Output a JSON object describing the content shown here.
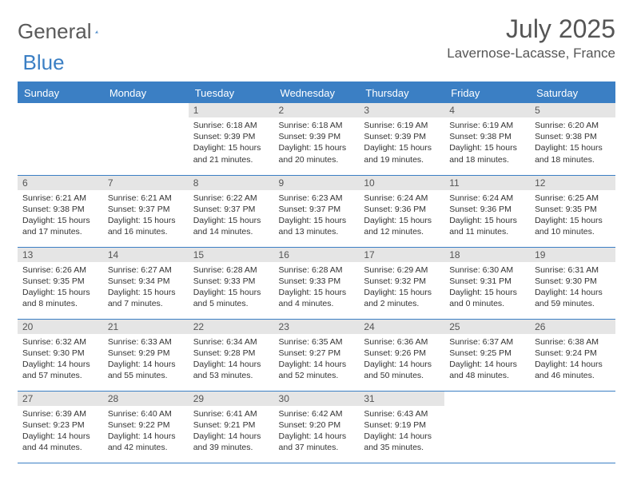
{
  "logo": {
    "part1": "General",
    "part2": "Blue"
  },
  "title": "July 2025",
  "location": "Lavernose-Lacasse, France",
  "colors": {
    "accent": "#3b7fc4",
    "header_bg": "#3b7fc4",
    "header_text": "#ffffff",
    "daynum_bg": "#e5e5e5",
    "text": "#333333",
    "muted": "#555555",
    "page_bg": "#ffffff"
  },
  "weekdays": [
    "Sunday",
    "Monday",
    "Tuesday",
    "Wednesday",
    "Thursday",
    "Friday",
    "Saturday"
  ],
  "first_weekday_index": 2,
  "days": [
    {
      "n": 1,
      "sunrise": "6:18 AM",
      "sunset": "9:39 PM",
      "daylight": "15 hours and 21 minutes."
    },
    {
      "n": 2,
      "sunrise": "6:18 AM",
      "sunset": "9:39 PM",
      "daylight": "15 hours and 20 minutes."
    },
    {
      "n": 3,
      "sunrise": "6:19 AM",
      "sunset": "9:39 PM",
      "daylight": "15 hours and 19 minutes."
    },
    {
      "n": 4,
      "sunrise": "6:19 AM",
      "sunset": "9:38 PM",
      "daylight": "15 hours and 18 minutes."
    },
    {
      "n": 5,
      "sunrise": "6:20 AM",
      "sunset": "9:38 PM",
      "daylight": "15 hours and 18 minutes."
    },
    {
      "n": 6,
      "sunrise": "6:21 AM",
      "sunset": "9:38 PM",
      "daylight": "15 hours and 17 minutes."
    },
    {
      "n": 7,
      "sunrise": "6:21 AM",
      "sunset": "9:37 PM",
      "daylight": "15 hours and 16 minutes."
    },
    {
      "n": 8,
      "sunrise": "6:22 AM",
      "sunset": "9:37 PM",
      "daylight": "15 hours and 14 minutes."
    },
    {
      "n": 9,
      "sunrise": "6:23 AM",
      "sunset": "9:37 PM",
      "daylight": "15 hours and 13 minutes."
    },
    {
      "n": 10,
      "sunrise": "6:24 AM",
      "sunset": "9:36 PM",
      "daylight": "15 hours and 12 minutes."
    },
    {
      "n": 11,
      "sunrise": "6:24 AM",
      "sunset": "9:36 PM",
      "daylight": "15 hours and 11 minutes."
    },
    {
      "n": 12,
      "sunrise": "6:25 AM",
      "sunset": "9:35 PM",
      "daylight": "15 hours and 10 minutes."
    },
    {
      "n": 13,
      "sunrise": "6:26 AM",
      "sunset": "9:35 PM",
      "daylight": "15 hours and 8 minutes."
    },
    {
      "n": 14,
      "sunrise": "6:27 AM",
      "sunset": "9:34 PM",
      "daylight": "15 hours and 7 minutes."
    },
    {
      "n": 15,
      "sunrise": "6:28 AM",
      "sunset": "9:33 PM",
      "daylight": "15 hours and 5 minutes."
    },
    {
      "n": 16,
      "sunrise": "6:28 AM",
      "sunset": "9:33 PM",
      "daylight": "15 hours and 4 minutes."
    },
    {
      "n": 17,
      "sunrise": "6:29 AM",
      "sunset": "9:32 PM",
      "daylight": "15 hours and 2 minutes."
    },
    {
      "n": 18,
      "sunrise": "6:30 AM",
      "sunset": "9:31 PM",
      "daylight": "15 hours and 0 minutes."
    },
    {
      "n": 19,
      "sunrise": "6:31 AM",
      "sunset": "9:30 PM",
      "daylight": "14 hours and 59 minutes."
    },
    {
      "n": 20,
      "sunrise": "6:32 AM",
      "sunset": "9:30 PM",
      "daylight": "14 hours and 57 minutes."
    },
    {
      "n": 21,
      "sunrise": "6:33 AM",
      "sunset": "9:29 PM",
      "daylight": "14 hours and 55 minutes."
    },
    {
      "n": 22,
      "sunrise": "6:34 AM",
      "sunset": "9:28 PM",
      "daylight": "14 hours and 53 minutes."
    },
    {
      "n": 23,
      "sunrise": "6:35 AM",
      "sunset": "9:27 PM",
      "daylight": "14 hours and 52 minutes."
    },
    {
      "n": 24,
      "sunrise": "6:36 AM",
      "sunset": "9:26 PM",
      "daylight": "14 hours and 50 minutes."
    },
    {
      "n": 25,
      "sunrise": "6:37 AM",
      "sunset": "9:25 PM",
      "daylight": "14 hours and 48 minutes."
    },
    {
      "n": 26,
      "sunrise": "6:38 AM",
      "sunset": "9:24 PM",
      "daylight": "14 hours and 46 minutes."
    },
    {
      "n": 27,
      "sunrise": "6:39 AM",
      "sunset": "9:23 PM",
      "daylight": "14 hours and 44 minutes."
    },
    {
      "n": 28,
      "sunrise": "6:40 AM",
      "sunset": "9:22 PM",
      "daylight": "14 hours and 42 minutes."
    },
    {
      "n": 29,
      "sunrise": "6:41 AM",
      "sunset": "9:21 PM",
      "daylight": "14 hours and 39 minutes."
    },
    {
      "n": 30,
      "sunrise": "6:42 AM",
      "sunset": "9:20 PM",
      "daylight": "14 hours and 37 minutes."
    },
    {
      "n": 31,
      "sunrise": "6:43 AM",
      "sunset": "9:19 PM",
      "daylight": "14 hours and 35 minutes."
    }
  ],
  "labels": {
    "sunrise": "Sunrise:",
    "sunset": "Sunset:",
    "daylight": "Daylight:"
  }
}
